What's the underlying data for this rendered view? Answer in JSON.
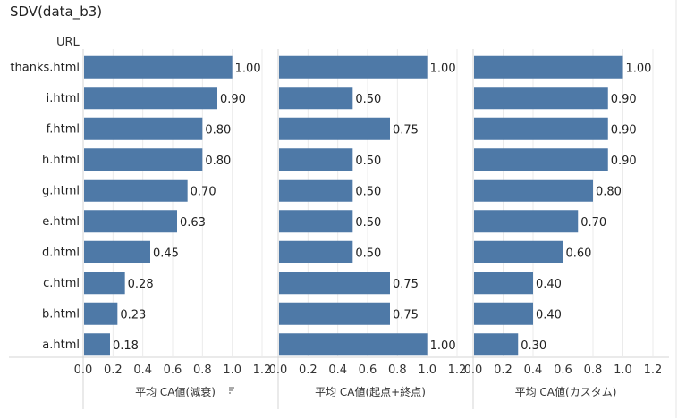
{
  "title": "SDV(data_b3)",
  "chart_data": {
    "type": "bar",
    "orientation": "horizontal",
    "row_header": "URL",
    "categories": [
      "thanks.html",
      "i.html",
      "f.html",
      "h.html",
      "g.html",
      "e.html",
      "d.html",
      "c.html",
      "b.html",
      "a.html"
    ],
    "series": [
      {
        "name": "平均 CA値(減衰)",
        "values": [
          1.0,
          0.9,
          0.8,
          0.8,
          0.7,
          0.63,
          0.45,
          0.28,
          0.23,
          0.18
        ],
        "labels": [
          "1.00",
          "0.90",
          "0.80",
          "0.80",
          "0.70",
          "0.63",
          "0.45",
          "0.28",
          "0.23",
          "0.18"
        ],
        "axis_label": "平均 CA値(減衰)"
      },
      {
        "name": "平均 CA値(起点+終点)",
        "values": [
          1.0,
          0.5,
          0.75,
          0.5,
          0.5,
          0.5,
          0.5,
          0.75,
          0.75,
          1.0
        ],
        "labels": [
          "1.00",
          "0.50",
          "0.75",
          "0.50",
          "0.50",
          "0.50",
          "0.50",
          "0.75",
          "0.75",
          "1.00"
        ],
        "axis_label": "平均 CA値(起点+終点)"
      },
      {
        "name": "平均 CA値(カスタム)",
        "values": [
          1.0,
          0.9,
          0.9,
          0.9,
          0.8,
          0.7,
          0.6,
          0.4,
          0.4,
          0.3
        ],
        "labels": [
          "1.00",
          "0.90",
          "0.90",
          "0.90",
          "0.80",
          "0.70",
          "0.60",
          "0.40",
          "0.40",
          "0.30"
        ],
        "axis_label": "平均 CA値(カスタム)"
      }
    ],
    "xlim": [
      0,
      1.2
    ],
    "xticks": [
      "0.0",
      "0.2",
      "0.4",
      "0.6",
      "0.8",
      "1.0",
      "1.2"
    ],
    "grid": true,
    "sort_icon": "sort-icon",
    "bar_color": "#4e79a7"
  },
  "colors": {
    "bar": "#4e79a7",
    "grid": "#ebebeb",
    "divider": "#d4d4d4",
    "text": "#333333"
  }
}
